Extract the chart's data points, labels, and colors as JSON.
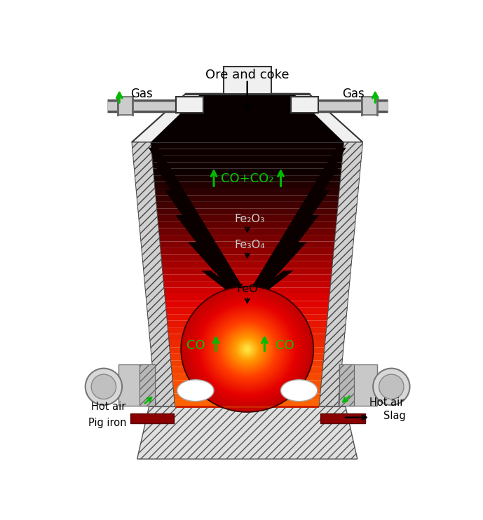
{
  "bg_color": "#ffffff",
  "fig_width": 6.89,
  "fig_height": 7.42,
  "dpi": 100,
  "labels": {
    "ore_coke": "Ore and coke",
    "gas_left": "Gas",
    "gas_right": "Gas",
    "co_co2": "CO+CO₂",
    "fe2o3": "Fe₂O₃",
    "fe3o4": "Fe₃O₄",
    "feo": "FeO",
    "co_left": "CO",
    "co_right": "CO",
    "hot_air_left": "Hot air",
    "hot_air_right": "Hot air",
    "pig_iron": "Pig iron",
    "slag": "Slag"
  }
}
